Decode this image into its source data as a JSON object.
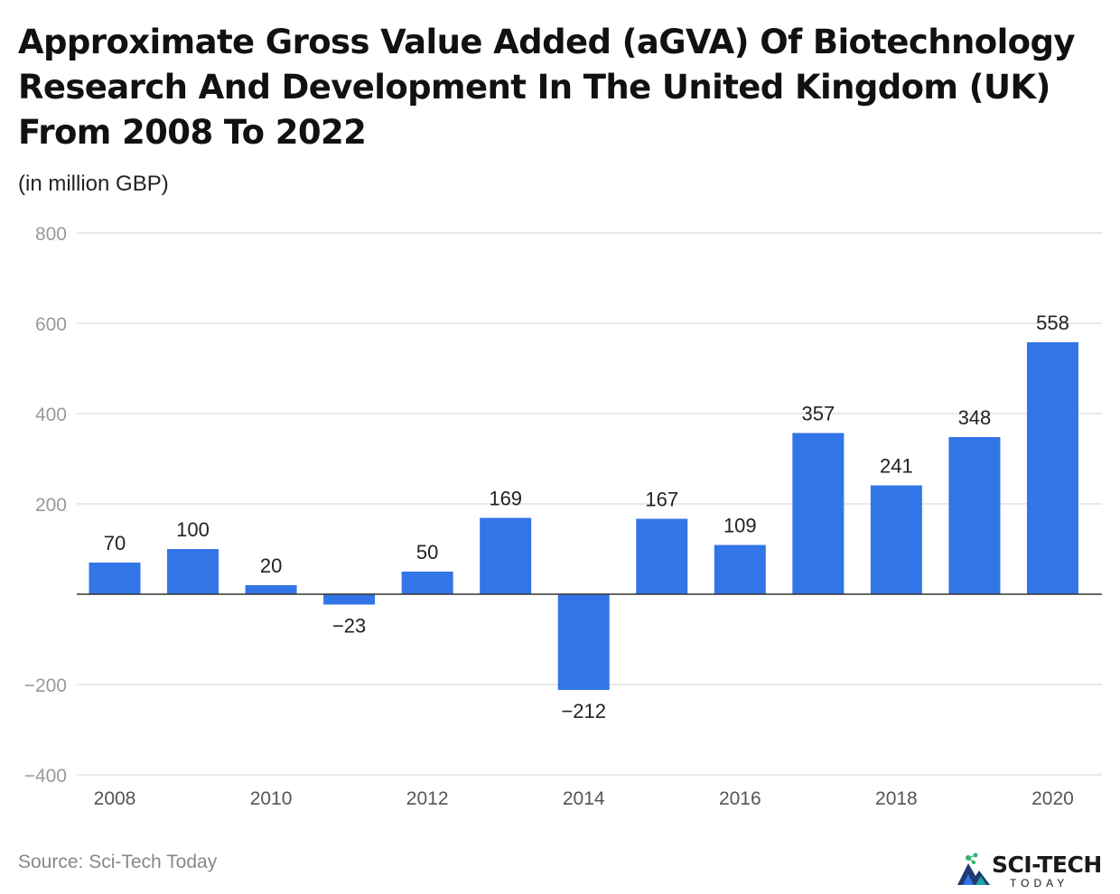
{
  "title": "Approximate Gross Value Added (aGVA) Of Biotechnology Research And Development In The United Kingdom (UK) From 2008 To 2022",
  "subtitle": "(in million GBP)",
  "source": "Source: Sci-Tech Today",
  "brand": {
    "name": "SCI-TECH",
    "tagline": "TODAY",
    "logo_icon": "mountain-molecule-icon"
  },
  "colors": {
    "bar": "#3275e6",
    "grid": "#e2e2e2",
    "zero_line": "#333333",
    "tick_label": "#999999",
    "x_tick_label": "#555555",
    "data_label": "#222222"
  },
  "chart_data": {
    "type": "bar",
    "title": "Approximate Gross Value Added (aGVA) Of Biotechnology Research And Development In The United Kingdom (UK) From 2008 To 2022",
    "subtitle": "(in million GBP)",
    "categories": [
      "2008",
      "2009",
      "2010",
      "2011",
      "2012",
      "2013",
      "2014",
      "2015",
      "2016",
      "2017",
      "2018",
      "2019",
      "2020"
    ],
    "values": [
      70,
      100,
      20,
      -23,
      50,
      169,
      -212,
      167,
      109,
      357,
      241,
      348,
      558
    ],
    "data_labels": [
      "70",
      "100",
      "20",
      "−23",
      "50",
      "169",
      "−212",
      "167",
      "109",
      "357",
      "241",
      "348",
      "558"
    ],
    "x_tick_labels": [
      "2008",
      "",
      "2010",
      "",
      "2012",
      "",
      "2014",
      "",
      "2016",
      "",
      "2018",
      "",
      "2020"
    ],
    "y_ticks": [
      800,
      600,
      400,
      200,
      -200,
      -400
    ],
    "y_tick_labels": [
      "800",
      "600",
      "400",
      "200",
      "−200",
      "−400"
    ],
    "ylim": [
      -400,
      800
    ],
    "xlabel": "",
    "ylabel": "",
    "grid": true,
    "legend": "none"
  }
}
